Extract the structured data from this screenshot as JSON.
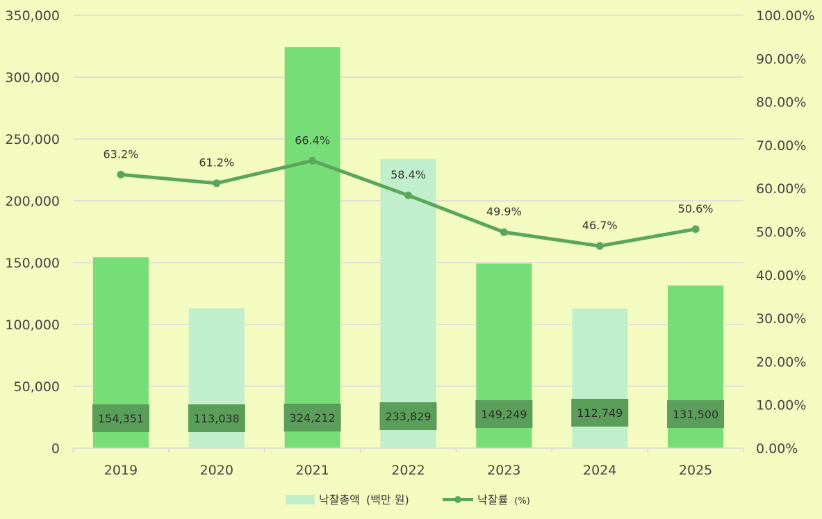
{
  "chart_data": {
    "type": "bar+line",
    "categories": [
      "2019",
      "2020",
      "2021",
      "2022",
      "2023",
      "2024",
      "2025"
    ],
    "series": [
      {
        "name": "낙찰총액 (백만 원)",
        "type": "bar",
        "axis": "left",
        "values": [
          154351,
          113038,
          324212,
          233829,
          149249,
          112749,
          131500
        ],
        "value_labels": [
          "154,351",
          "113,038",
          "324,212",
          "233,829",
          "149,249",
          "112,749",
          "131,500"
        ],
        "bar_colors": [
          "#77dd77",
          "#c1efcc",
          "#77dd77",
          "#c1efcc",
          "#77dd77",
          "#c1efcc",
          "#77dd77"
        ]
      },
      {
        "name": "낙찰률 (%)",
        "type": "line",
        "axis": "right",
        "values": [
          63.2,
          61.2,
          66.4,
          58.4,
          49.9,
          46.7,
          50.6
        ],
        "value_labels": [
          "63.2%",
          "61.2%",
          "66.4%",
          "58.4%",
          "49.9%",
          "46.7%",
          "50.6%"
        ],
        "color": "#5aa65a"
      }
    ],
    "y_left": {
      "min": 0,
      "max": 350000,
      "ticks": [
        "0",
        "50,000",
        "100,000",
        "150,000",
        "200,000",
        "250,000",
        "300,000",
        "350,000"
      ]
    },
    "y_right": {
      "min": 0,
      "max": 100,
      "ticks": [
        "0.00%",
        "10.00%",
        "20.00%",
        "30.00%",
        "40.00%",
        "50.00%",
        "60.00%",
        "70.00%",
        "80.00%",
        "90.00%",
        "100.00%"
      ]
    },
    "grid": true,
    "legend": {
      "placement": "bottom",
      "bar_label_main": "낙찰총액",
      "bar_label_unit": "(백만 원)",
      "line_label_main": "낙찰률",
      "line_label_unit": "(%)"
    },
    "colors": {
      "background": "#f3fbc0",
      "grid": "#d9d9d9",
      "label_box": "#5a9e5a",
      "legend_bar": "#c1efcc",
      "line": "#5aa65a"
    }
  }
}
